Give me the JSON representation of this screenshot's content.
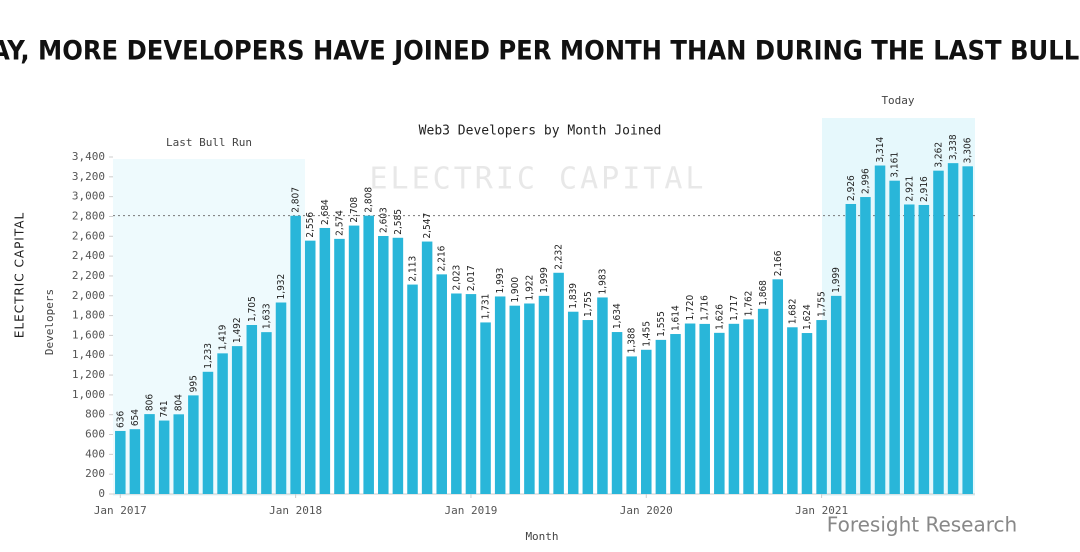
{
  "chart_data": {
    "type": "bar",
    "title": "TODAY, MORE DEVELOPERS HAVE JOINED PER MONTH THAN DURING THE LAST BULL RUN",
    "subtitle": "Web3 Developers by Month Joined",
    "x_label": "Month",
    "y_label": "Developers",
    "brand": "ELECTRIC CAPITAL",
    "watermark": "Foresight Research",
    "annotations": [
      "Last Bull Run",
      "Today"
    ],
    "reference_line": 2808,
    "color": "#29b6d9",
    "categories": [
      "Jan 2017",
      null,
      null,
      null,
      null,
      null,
      null,
      null,
      null,
      null,
      null,
      null,
      "Jan 2018",
      null,
      null,
      null,
      null,
      null,
      null,
      null,
      null,
      null,
      null,
      null,
      "Jan 2019",
      null,
      null,
      null,
      null,
      null,
      null,
      null,
      null,
      null,
      null,
      null,
      "Jan 2020",
      null,
      null,
      null,
      null,
      null,
      null,
      null,
      null,
      null,
      null,
      null,
      "Jan 2021",
      null,
      null,
      null,
      null,
      null,
      null,
      null,
      null,
      null,
      null
    ],
    "values": [
      636,
      654,
      806,
      741,
      804,
      995,
      1233,
      1419,
      1492,
      1705,
      1633,
      1932,
      2807,
      2556,
      2684,
      2574,
      2708,
      2808,
      2603,
      2585,
      2113,
      2547,
      2216,
      2023,
      2017,
      1731,
      1993,
      1900,
      1922,
      1999,
      2232,
      1839,
      1755,
      1983,
      1634,
      1388,
      1455,
      1555,
      1614,
      1720,
      1716,
      1626,
      1717,
      1762,
      1868,
      2166,
      1682,
      1624,
      1755,
      1999,
      2926,
      2996,
      3314,
      3161,
      2921,
      2916,
      3262,
      3338,
      3306
    ],
    "value_labels": [
      "636",
      "654",
      "806",
      "741",
      "804",
      "995",
      "1,233",
      "1,419",
      "1,492",
      "1,705",
      "1,633",
      "1,932",
      "2,807",
      "2,556",
      "2,684",
      "2,574",
      "2,708",
      "2,808",
      "2,603",
      "2,585",
      "2,113",
      "2,547",
      "2,216",
      "2,023",
      "2,017",
      "1,731",
      "1,993",
      "1,900",
      "1,922",
      "1,999",
      "2,232",
      "1,839",
      "1,755",
      "1,983",
      "1,634",
      "1,388",
      "1,455",
      "1,555",
      "1,614",
      "1,720",
      "1,716",
      "1,626",
      "1,717",
      "1,762",
      "1,868",
      "2,166",
      "1,682",
      "1,624",
      "1,755",
      "1,999",
      "2,926",
      "2,996",
      "3,314",
      "3,161",
      "2,921",
      "2,916",
      "3,262",
      "3,338",
      "3,306"
    ],
    "ylim": [
      0,
      3400
    ],
    "yticks": [
      0,
      200,
      400,
      600,
      800,
      {
        "value": 1000,
        "label": "1,000"
      },
      {
        "value": 1200,
        "label": "1,200"
      },
      {
        "value": 1400,
        "label": "1,400"
      },
      {
        "value": 1600,
        "label": "1,600"
      },
      {
        "value": 1800,
        "label": "1,800"
      },
      {
        "value": 2000,
        "label": "2,000"
      },
      {
        "value": 2200,
        "label": "2,200"
      },
      {
        "value": 2400,
        "label": "2,400"
      },
      {
        "value": 2600,
        "label": "2,600"
      },
      {
        "value": 2800,
        "label": "2,800"
      },
      {
        "value": 3000,
        "label": "3,000"
      },
      {
        "value": 3200,
        "label": "3,200"
      },
      {
        "value": 3400,
        "label": "3,400"
      }
    ],
    "grid": false
  }
}
